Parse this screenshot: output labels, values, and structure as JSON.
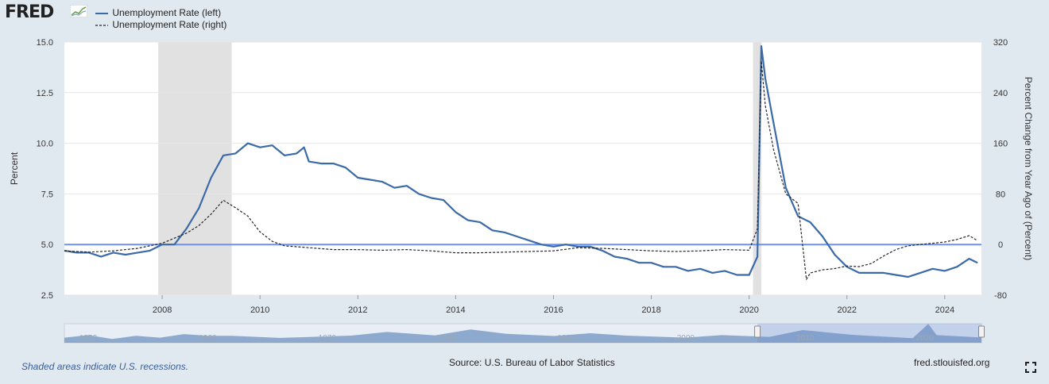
{
  "header": {
    "logo_text": "FRED",
    "legend": [
      {
        "label": "Unemployment Rate (left)",
        "style": "solid",
        "color": "#3b6aa8"
      },
      {
        "label": "Unemployment Rate (right)",
        "style": "dashed",
        "color": "#222222"
      }
    ]
  },
  "footer": {
    "recession_note": "Shaded areas indicate U.S. recessions.",
    "source": "Source: U.S. Bureau of Labor Statistics",
    "site": "fred.stlouisfed.org"
  },
  "navigator": {
    "labels": [
      "1950",
      "1960",
      "1970",
      "1980",
      "1990",
      "2000",
      "2010",
      "2020"
    ],
    "range_start": 2006.0,
    "range_end": 2024.75,
    "full_start": 1948,
    "full_end": 2024.75,
    "color": "#7d9cc6"
  },
  "chart_data": {
    "type": "line",
    "xlim": [
      2006.0,
      2024.75
    ],
    "x_ticks": [
      "2008",
      "2010",
      "2012",
      "2014",
      "2016",
      "2018",
      "2020",
      "2022",
      "2024"
    ],
    "ylabel_left": "Percent",
    "ylabel_right": "Percent Change from Year Ago of (Percent)",
    "ylim_left": [
      2.5,
      15.0
    ],
    "y_ticks_left": [
      "2.5",
      "5.0",
      "7.5",
      "10.0",
      "12.5",
      "15.0"
    ],
    "ylim_right": [
      -80,
      320
    ],
    "y_ticks_right": [
      "-80",
      "0",
      "80",
      "160",
      "240",
      "320"
    ],
    "reference_line_left": 5.0,
    "recessions": [
      [
        2007.92,
        2009.42
      ],
      [
        2020.08,
        2020.25
      ]
    ],
    "grid": true,
    "series": [
      {
        "name": "Unemployment Rate (left)",
        "axis": "left",
        "color": "#3b6aa8",
        "x": [
          2006.0,
          2006.25,
          2006.5,
          2006.75,
          2007.0,
          2007.25,
          2007.5,
          2007.75,
          2008.0,
          2008.25,
          2008.5,
          2008.75,
          2009.0,
          2009.25,
          2009.5,
          2009.75,
          2010.0,
          2010.25,
          2010.5,
          2010.75,
          2010.9,
          2011.0,
          2011.25,
          2011.5,
          2011.75,
          2012.0,
          2012.25,
          2012.5,
          2012.75,
          2013.0,
          2013.25,
          2013.5,
          2013.75,
          2014.0,
          2014.25,
          2014.5,
          2014.75,
          2015.0,
          2015.25,
          2015.5,
          2015.75,
          2016.0,
          2016.25,
          2016.5,
          2016.75,
          2017.0,
          2017.25,
          2017.5,
          2017.75,
          2018.0,
          2018.25,
          2018.5,
          2018.75,
          2019.0,
          2019.25,
          2019.5,
          2019.75,
          2020.0,
          2020.17,
          2020.25,
          2020.33,
          2020.5,
          2020.75,
          2021.0,
          2021.25,
          2021.5,
          2021.75,
          2022.0,
          2022.25,
          2022.5,
          2022.75,
          2023.0,
          2023.25,
          2023.5,
          2023.75,
          2024.0,
          2024.25,
          2024.5,
          2024.67
        ],
        "values": [
          4.7,
          4.6,
          4.6,
          4.4,
          4.6,
          4.5,
          4.6,
          4.7,
          5.0,
          5.0,
          5.8,
          6.8,
          8.3,
          9.4,
          9.5,
          10.0,
          9.8,
          9.9,
          9.4,
          9.5,
          9.8,
          9.1,
          9.0,
          9.0,
          8.8,
          8.3,
          8.2,
          8.1,
          7.8,
          7.9,
          7.5,
          7.3,
          7.2,
          6.6,
          6.2,
          6.1,
          5.7,
          5.6,
          5.4,
          5.2,
          5.0,
          4.9,
          5.0,
          4.9,
          4.9,
          4.7,
          4.4,
          4.3,
          4.1,
          4.1,
          3.9,
          3.9,
          3.7,
          3.8,
          3.6,
          3.7,
          3.5,
          3.5,
          4.4,
          14.8,
          13.2,
          11.0,
          7.8,
          6.4,
          6.1,
          5.4,
          4.5,
          3.9,
          3.6,
          3.6,
          3.6,
          3.5,
          3.4,
          3.6,
          3.8,
          3.7,
          3.9,
          4.3,
          4.1
        ]
      },
      {
        "name": "Unemployment Rate (right)",
        "axis": "right",
        "color": "#222222",
        "x": [
          2006.0,
          2006.5,
          2007.0,
          2007.5,
          2008.0,
          2008.5,
          2008.75,
          2009.0,
          2009.25,
          2009.5,
          2009.75,
          2010.0,
          2010.25,
          2010.5,
          2011.0,
          2011.5,
          2012.0,
          2012.5,
          2013.0,
          2013.5,
          2014.0,
          2014.5,
          2015.0,
          2015.5,
          2016.0,
          2016.5,
          2017.0,
          2017.5,
          2018.0,
          2018.5,
          2019.0,
          2019.5,
          2020.0,
          2020.17,
          2020.25,
          2020.33,
          2020.5,
          2020.75,
          2021.0,
          2021.17,
          2021.25,
          2021.5,
          2021.75,
          2022.0,
          2022.25,
          2022.5,
          2022.75,
          2023.0,
          2023.25,
          2023.5,
          2023.75,
          2024.0,
          2024.25,
          2024.5,
          2024.67
        ],
        "values": [
          -10,
          -12,
          -10,
          -6,
          2,
          18,
          30,
          48,
          70,
          58,
          45,
          20,
          5,
          -2,
          -5,
          -8,
          -8,
          -9,
          -8,
          -10,
          -13,
          -13,
          -12,
          -11,
          -10,
          -5,
          -6,
          -8,
          -10,
          -11,
          -10,
          -8,
          -9,
          25,
          290,
          220,
          150,
          80,
          65,
          -55,
          -45,
          -40,
          -38,
          -34,
          -35,
          -30,
          -18,
          -8,
          -2,
          0,
          2,
          4,
          8,
          14,
          6
        ]
      }
    ]
  }
}
